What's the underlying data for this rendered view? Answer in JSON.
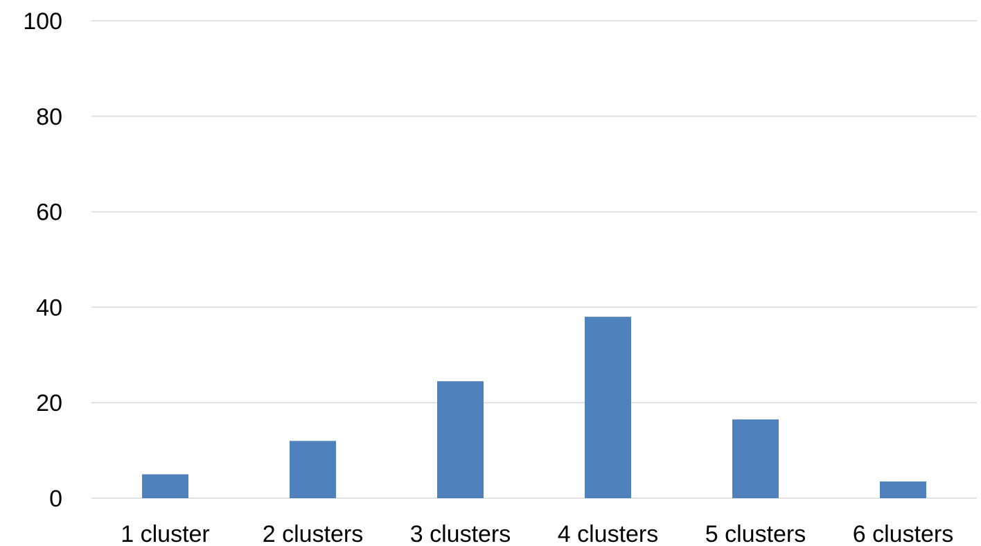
{
  "chart_data": {
    "type": "bar",
    "title": "",
    "xlabel": "",
    "ylabel": "",
    "categories": [
      "1 cluster",
      "2 clusters",
      "3 clusters",
      "4 clusters",
      "5 clusters",
      "6 clusters"
    ],
    "values": [
      5,
      12,
      24.5,
      38,
      16.5,
      3.5
    ],
    "ylim": [
      0,
      100
    ],
    "yticks": [
      "0",
      "20",
      "40",
      "60",
      "80",
      "100"
    ],
    "grid": true,
    "legend": "none",
    "bar_color": "#4f81bd"
  }
}
